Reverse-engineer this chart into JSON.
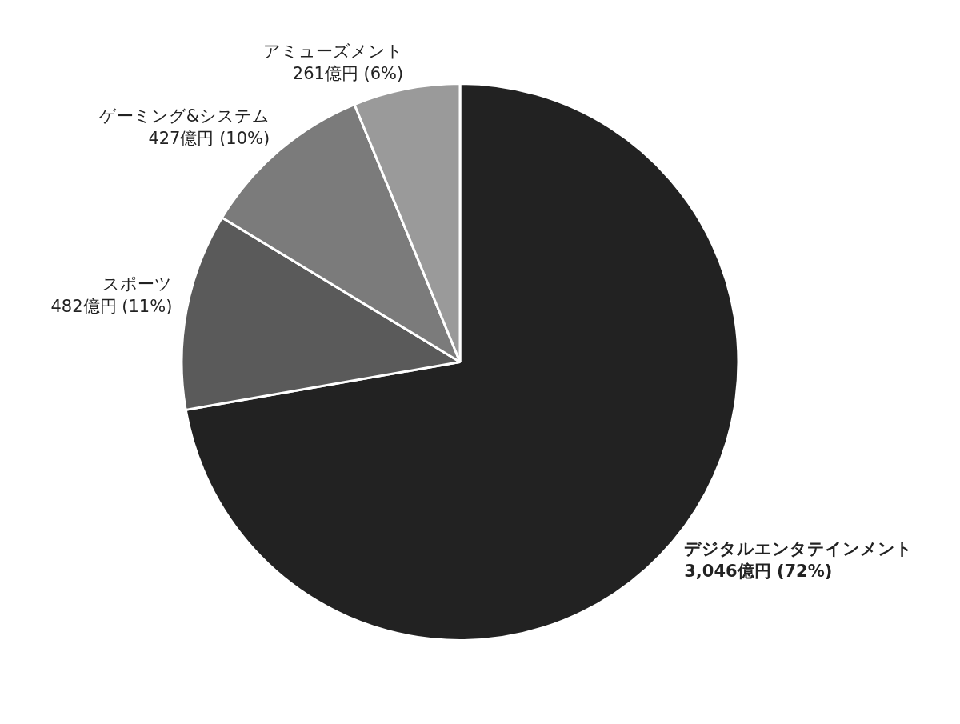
{
  "chart_data": {
    "type": "pie",
    "categories": [
      "デジタルエンタテインメント",
      "スポーツ",
      "ゲーミング&システム",
      "アミューズメント"
    ],
    "values": [
      3046,
      482,
      427,
      261
    ],
    "colors": [
      "#222222",
      "#5a5a5a",
      "#7b7b7b",
      "#9a9a9a"
    ],
    "value_labels": [
      "3,046億円 (72%)",
      "482億円 (11%)",
      "427億円 (10%)",
      "261億円 (6%)"
    ],
    "legend": false
  }
}
